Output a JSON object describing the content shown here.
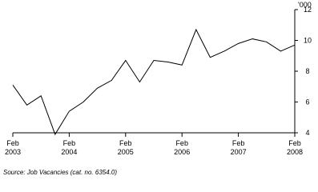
{
  "chart_data": {
    "type": "line",
    "ylabel": "'000",
    "categories": [
      "Feb 2003",
      null,
      null,
      null,
      "Feb 2004",
      null,
      null,
      null,
      "Feb 2005",
      null,
      null,
      null,
      "Feb 2006",
      null,
      null,
      null,
      "Feb 2007",
      null,
      null,
      null,
      "Feb 2008"
    ],
    "series": [
      {
        "name": "Job vacancies",
        "color": "#000000",
        "values": [
          7.1,
          5.8,
          6.4,
          3.9,
          5.4,
          6.0,
          6.9,
          7.4,
          8.7,
          7.3,
          8.7,
          8.6,
          8.4,
          10.7,
          8.9,
          9.3,
          9.8,
          10.1,
          9.9,
          9.3,
          9.7
        ]
      }
    ],
    "ylim": [
      4,
      12
    ],
    "yticks": [
      4,
      6,
      8,
      10,
      12
    ],
    "source": "Source: Job Vacancies (cat. no. 6354.0)"
  }
}
